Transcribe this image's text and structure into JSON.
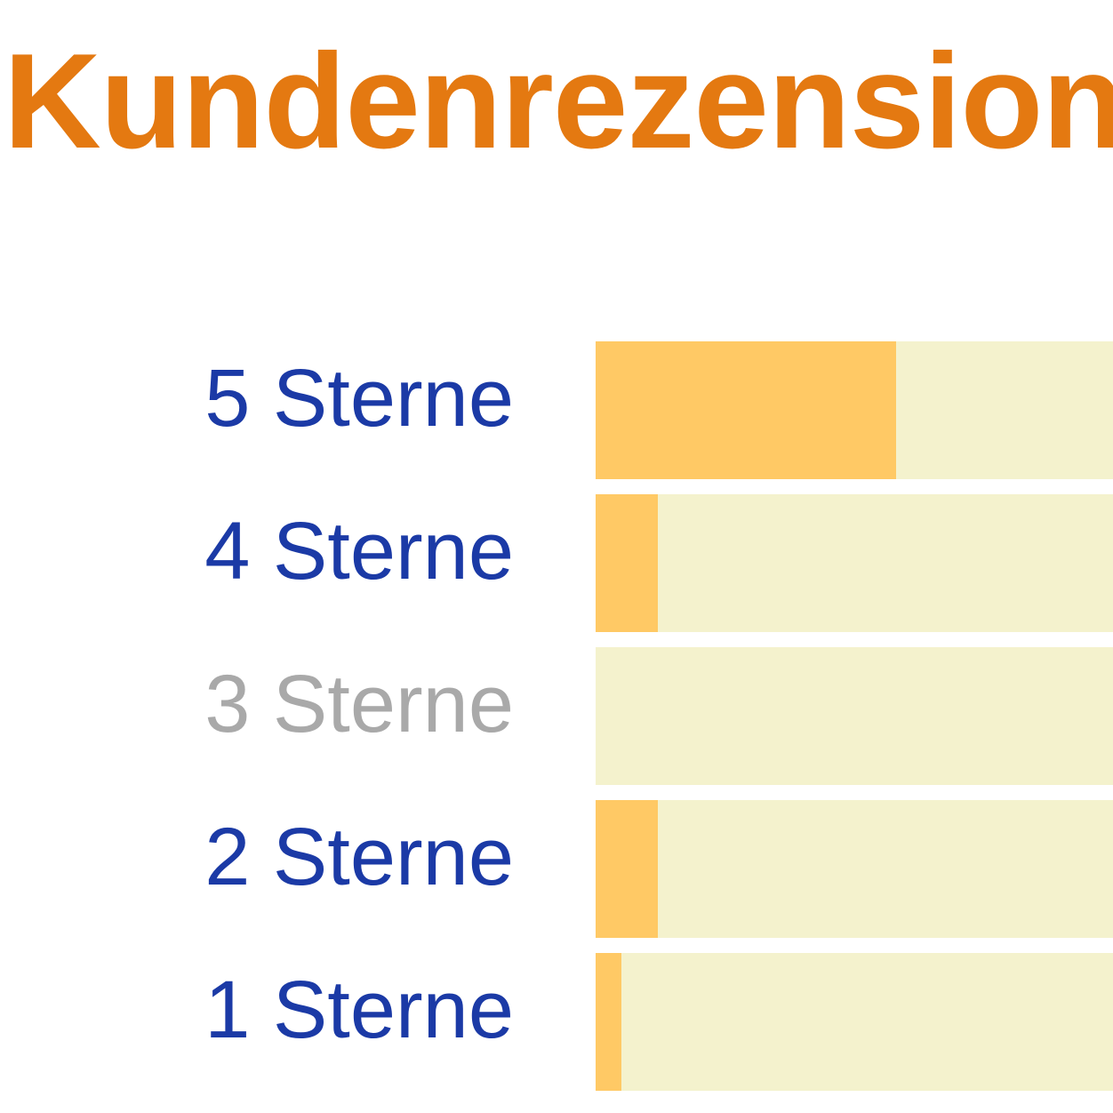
{
  "header": {
    "title": "Kundenrezension"
  },
  "colors": {
    "title": "#e47911",
    "label_link": "#1b3aa6",
    "label_disabled": "#a9a9a9",
    "bar_fill": "#ffc965",
    "bar_track": "#f4f2cd"
  },
  "ratings": [
    {
      "label": "5 Sterne",
      "fraction": 0.58,
      "active": true
    },
    {
      "label": "4 Sterne",
      "fraction": 0.12,
      "active": true
    },
    {
      "label": "3 Sterne",
      "fraction": 0.0,
      "active": false
    },
    {
      "label": "2 Sterne",
      "fraction": 0.12,
      "active": true
    },
    {
      "label": "1 Sterne",
      "fraction": 0.05,
      "active": true
    }
  ]
}
